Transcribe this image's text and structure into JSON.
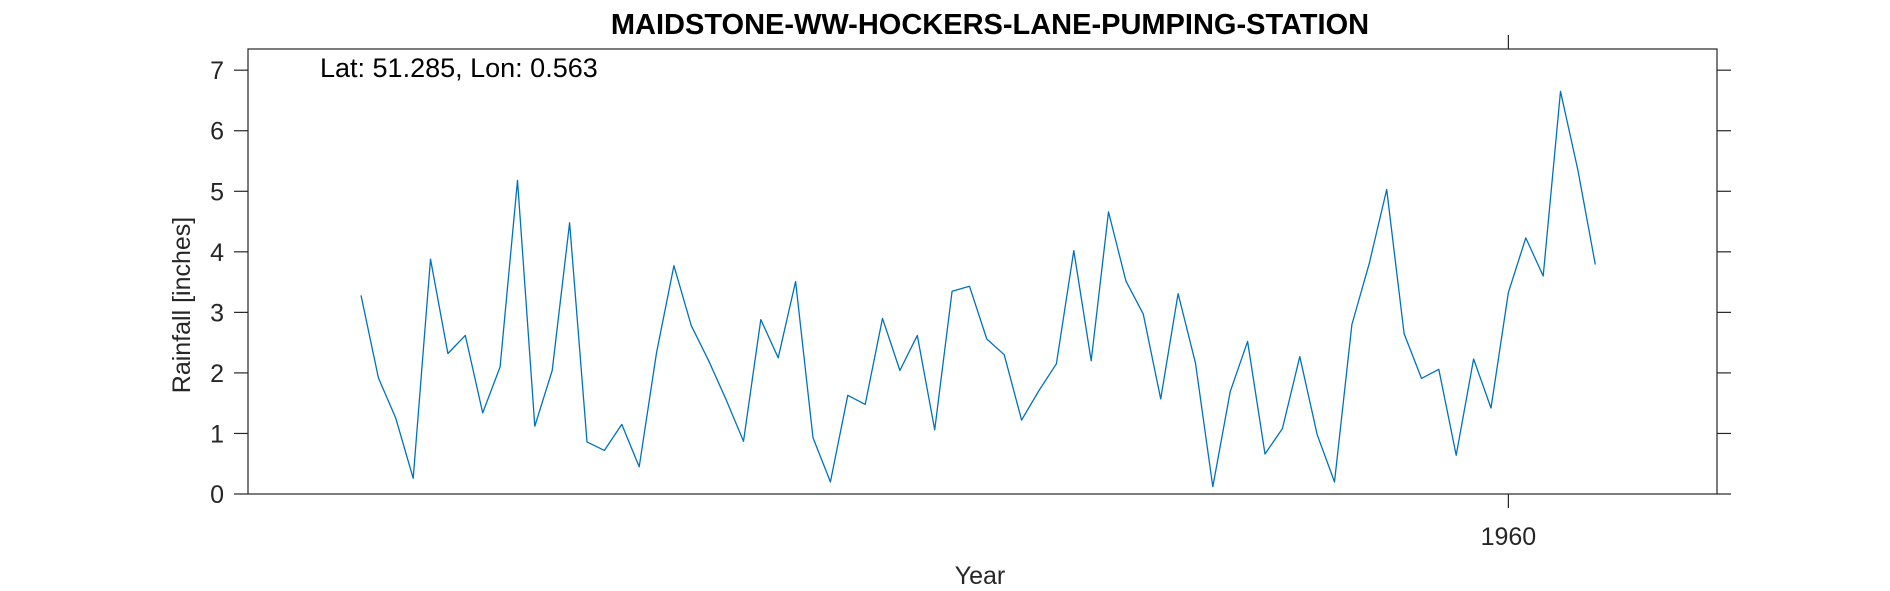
{
  "chart_data": {
    "type": "line",
    "title": "MAIDSTONE-WW-HOCKERS-LANE-PUMPING-STATION",
    "annotation": "Lat: 51.285, Lon: 0.563",
    "xlabel": "Year",
    "ylabel": "Rainfall [inches]",
    "xlim": [
      1887.5,
      1972.0
    ],
    "ylim": [
      0,
      7.35
    ],
    "xticks": [
      1960
    ],
    "xtick_labels": [
      "1960"
    ],
    "yticks": [
      0,
      1,
      2,
      3,
      4,
      5,
      6,
      7
    ],
    "ytick_labels": [
      "0",
      "1",
      "2",
      "3",
      "4",
      "5",
      "6",
      "7"
    ],
    "grid": false,
    "line_color": "#0072BD",
    "series": [
      {
        "x": [
          1894,
          1895,
          1896,
          1897,
          1898,
          1899,
          1900,
          1901,
          1902,
          1903,
          1904,
          1905,
          1906,
          1907,
          1908,
          1909,
          1910,
          1911,
          1912,
          1913,
          1914,
          1915,
          1916,
          1917,
          1918,
          1919,
          1920,
          1921,
          1922,
          1923,
          1924,
          1925,
          1926,
          1927,
          1928,
          1929,
          1930,
          1931,
          1932,
          1933,
          1934,
          1935,
          1936,
          1937,
          1938,
          1939,
          1940,
          1941,
          1942,
          1943,
          1944,
          1945,
          1946,
          1947,
          1948,
          1949,
          1950,
          1951,
          1952,
          1953,
          1954,
          1955,
          1956,
          1957,
          1958,
          1959,
          1960,
          1961,
          1962,
          1963,
          1964,
          1965
        ],
        "y": [
          3.28,
          1.92,
          1.25,
          0.26,
          3.88,
          2.32,
          2.62,
          1.34,
          2.1,
          5.18,
          1.12,
          2.04,
          4.48,
          0.86,
          0.72,
          1.15,
          0.45,
          2.33,
          3.77,
          2.78,
          2.2,
          1.56,
          0.87,
          2.88,
          2.25,
          3.51,
          0.93,
          0.2,
          1.63,
          1.48,
          2.9,
          2.04,
          2.62,
          1.06,
          3.35,
          3.43,
          2.56,
          2.3,
          1.22,
          1.71,
          2.15,
          4.02,
          2.2,
          4.66,
          3.52,
          2.97,
          1.57,
          3.31,
          2.16,
          0.12,
          1.69,
          2.52,
          0.66,
          1.08,
          2.27,
          0.98,
          0.2,
          2.8,
          3.81,
          5.03,
          2.65,
          1.91,
          2.06,
          0.64,
          2.23,
          1.42,
          3.33,
          4.23,
          3.6,
          6.65,
          5.35,
          3.79
        ]
      }
    ]
  }
}
